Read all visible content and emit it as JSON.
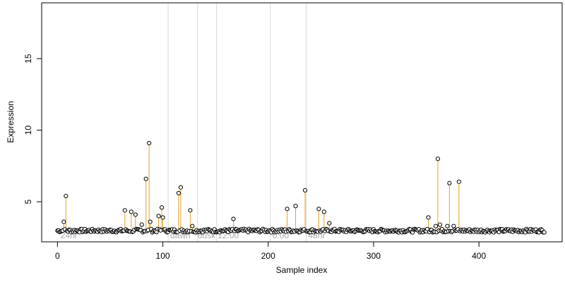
{
  "chart_data": {
    "type": "scatter",
    "title": "",
    "xlabel": "Sample index",
    "ylabel": "Expression",
    "xlim": [
      -15,
      479
    ],
    "ylim": [
      2.2,
      18.9
    ],
    "x_ticks": [
      0,
      100,
      200,
      300,
      400
    ],
    "y_ticks": [
      5,
      10,
      15
    ],
    "grid": false,
    "vertical_markers": [
      105,
      133,
      151,
      202,
      236
    ],
    "region_labels": [
      {
        "x": 3,
        "text": "24hr"
      },
      {
        "x": 107,
        "text": "dawn"
      },
      {
        "x": 133,
        "text": "dusk"
      },
      {
        "x": 152,
        "text": "12:00"
      },
      {
        "x": 204,
        "text": "0:00"
      },
      {
        "x": 238,
        "text": "48hr"
      }
    ],
    "baseline_segment": {
      "x": [
        5,
        68
      ],
      "y": 3.0
    },
    "stem_base": 2.9,
    "peaks": [
      {
        "x": 6,
        "y": 3.6
      },
      {
        "x": 8,
        "y": 5.4
      },
      {
        "x": 64,
        "y": 4.4
      },
      {
        "x": 70,
        "y": 4.3
      },
      {
        "x": 74,
        "y": 4.1
      },
      {
        "x": 80,
        "y": 3.4
      },
      {
        "x": 84,
        "y": 6.6
      },
      {
        "x": 87,
        "y": 9.1
      },
      {
        "x": 88,
        "y": 3.6
      },
      {
        "x": 96,
        "y": 4.0
      },
      {
        "x": 99,
        "y": 4.6
      },
      {
        "x": 100,
        "y": 3.9
      },
      {
        "x": 115,
        "y": 5.6
      },
      {
        "x": 117,
        "y": 6.0
      },
      {
        "x": 126,
        "y": 4.4
      },
      {
        "x": 128,
        "y": 3.3
      },
      {
        "x": 167,
        "y": 3.8
      },
      {
        "x": 218,
        "y": 4.5
      },
      {
        "x": 226,
        "y": 4.7
      },
      {
        "x": 235,
        "y": 5.8
      },
      {
        "x": 248,
        "y": 4.5
      },
      {
        "x": 253,
        "y": 4.3
      },
      {
        "x": 258,
        "y": 3.5
      },
      {
        "x": 352,
        "y": 3.9
      },
      {
        "x": 359,
        "y": 3.3
      },
      {
        "x": 361,
        "y": 8.0
      },
      {
        "x": 363,
        "y": 3.4
      },
      {
        "x": 370,
        "y": 3.3
      },
      {
        "x": 372,
        "y": 6.3
      },
      {
        "x": 376,
        "y": 3.3
      },
      {
        "x": 381,
        "y": 6.4
      }
    ],
    "n_points": 463,
    "point_mean": 2.98,
    "point_amplitude": 0.12
  }
}
